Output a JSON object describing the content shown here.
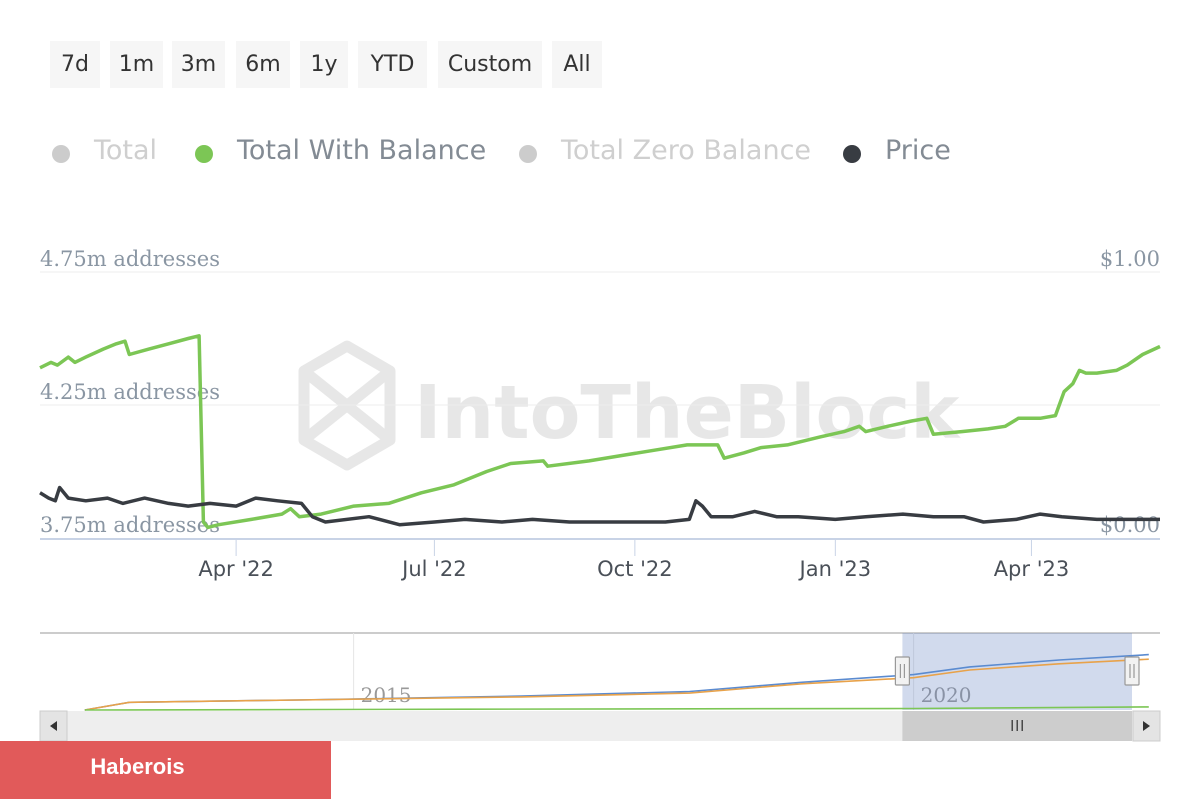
{
  "range_buttons": [
    {
      "id": "7d",
      "label": "7d"
    },
    {
      "id": "1m",
      "label": "1m"
    },
    {
      "id": "3m",
      "label": "3m"
    },
    {
      "id": "6m",
      "label": "6m"
    },
    {
      "id": "1y",
      "label": "1y"
    },
    {
      "id": "ytd",
      "label": "YTD"
    },
    {
      "id": "custom",
      "label": "Custom"
    },
    {
      "id": "all",
      "label": "All"
    }
  ],
  "legend": [
    {
      "id": "total",
      "label": "Total",
      "color": "#cccccc",
      "active": false
    },
    {
      "id": "total-with-balance",
      "label": "Total With Balance",
      "color": "#7cc655",
      "active": true
    },
    {
      "id": "total-zero-balance",
      "label": "Total Zero Balance",
      "color": "#cccccc",
      "active": false
    },
    {
      "id": "price",
      "label": "Price",
      "color": "#383c42",
      "active": true
    }
  ],
  "watermark": "IntoTheBlock",
  "banner": {
    "label": "Haberois"
  },
  "chart_data": {
    "type": "line",
    "title": "",
    "x_range": [
      "2022-01-01",
      "2023-05-30"
    ],
    "x_ticks": [
      {
        "label": "Apr '22",
        "date": "2022-04-01"
      },
      {
        "label": "Jul '22",
        "date": "2022-07-01"
      },
      {
        "label": "Oct '22",
        "date": "2022-10-01"
      },
      {
        "label": "Jan '23",
        "date": "2023-01-01"
      },
      {
        "label": "Apr '23",
        "date": "2023-04-01"
      }
    ],
    "y_left": {
      "range": [
        3.75,
        4.75
      ],
      "ticks": [
        {
          "value": 3.75,
          "label": "3.75m addresses"
        },
        {
          "value": 4.25,
          "label": "4.25m addresses"
        },
        {
          "value": 4.75,
          "label": "4.75m addresses"
        }
      ]
    },
    "y_right": {
      "range": [
        0,
        1
      ],
      "ticks": [
        {
          "value": 0,
          "label": "$0.00"
        },
        {
          "value": 1,
          "label": "$1.00"
        }
      ]
    },
    "series": [
      {
        "name": "Total With Balance",
        "axis": "left",
        "color": "#7cc655",
        "points": [
          [
            "2022-01-01",
            4.39
          ],
          [
            "2022-01-06",
            4.41
          ],
          [
            "2022-01-09",
            4.4
          ],
          [
            "2022-01-14",
            4.43
          ],
          [
            "2022-01-17",
            4.41
          ],
          [
            "2022-01-22",
            4.43
          ],
          [
            "2022-01-30",
            4.46
          ],
          [
            "2022-02-05",
            4.48
          ],
          [
            "2022-02-09",
            4.49
          ],
          [
            "2022-02-11",
            4.44
          ],
          [
            "2022-02-20",
            4.46
          ],
          [
            "2022-03-01",
            4.48
          ],
          [
            "2022-03-10",
            4.5
          ],
          [
            "2022-03-15",
            4.51
          ],
          [
            "2022-03-17",
            3.81
          ],
          [
            "2022-03-19",
            3.79
          ],
          [
            "2022-03-24",
            3.8
          ],
          [
            "2022-04-08",
            3.82
          ],
          [
            "2022-04-22",
            3.84
          ],
          [
            "2022-04-26",
            3.86
          ],
          [
            "2022-04-30",
            3.83
          ],
          [
            "2022-05-10",
            3.84
          ],
          [
            "2022-05-25",
            3.87
          ],
          [
            "2022-06-10",
            3.88
          ],
          [
            "2022-06-25",
            3.92
          ],
          [
            "2022-07-10",
            3.95
          ],
          [
            "2022-07-25",
            4.0
          ],
          [
            "2022-08-05",
            4.03
          ],
          [
            "2022-08-20",
            4.04
          ],
          [
            "2022-08-22",
            4.02
          ],
          [
            "2022-09-10",
            4.04
          ],
          [
            "2022-09-25",
            4.06
          ],
          [
            "2022-10-10",
            4.08
          ],
          [
            "2022-10-25",
            4.1
          ],
          [
            "2022-11-08",
            4.1
          ],
          [
            "2022-11-11",
            4.05
          ],
          [
            "2022-11-20",
            4.07
          ],
          [
            "2022-11-28",
            4.09
          ],
          [
            "2022-12-10",
            4.1
          ],
          [
            "2022-12-25",
            4.13
          ],
          [
            "2023-01-05",
            4.15
          ],
          [
            "2023-01-12",
            4.17
          ],
          [
            "2023-01-15",
            4.15
          ],
          [
            "2023-01-25",
            4.17
          ],
          [
            "2023-02-05",
            4.19
          ],
          [
            "2023-02-12",
            4.2
          ],
          [
            "2023-02-15",
            4.14
          ],
          [
            "2023-02-28",
            4.15
          ],
          [
            "2023-03-12",
            4.16
          ],
          [
            "2023-03-20",
            4.17
          ],
          [
            "2023-03-26",
            4.2
          ],
          [
            "2023-04-05",
            4.2
          ],
          [
            "2023-04-12",
            4.21
          ],
          [
            "2023-04-16",
            4.3
          ],
          [
            "2023-04-20",
            4.33
          ],
          [
            "2023-04-23",
            4.38
          ],
          [
            "2023-04-26",
            4.37
          ],
          [
            "2023-05-01",
            4.37
          ],
          [
            "2023-05-10",
            4.38
          ],
          [
            "2023-05-15",
            4.4
          ],
          [
            "2023-05-22",
            4.44
          ],
          [
            "2023-05-30",
            4.47
          ]
        ]
      },
      {
        "name": "Price",
        "axis": "right",
        "color": "#383c42",
        "points": [
          [
            "2022-01-01",
            0.17
          ],
          [
            "2022-01-05",
            0.15
          ],
          [
            "2022-01-08",
            0.14
          ],
          [
            "2022-01-10",
            0.19
          ],
          [
            "2022-01-14",
            0.15
          ],
          [
            "2022-01-22",
            0.14
          ],
          [
            "2022-02-01",
            0.15
          ],
          [
            "2022-02-08",
            0.13
          ],
          [
            "2022-02-18",
            0.15
          ],
          [
            "2022-03-01",
            0.13
          ],
          [
            "2022-03-10",
            0.12
          ],
          [
            "2022-03-20",
            0.13
          ],
          [
            "2022-04-01",
            0.12
          ],
          [
            "2022-04-10",
            0.15
          ],
          [
            "2022-04-20",
            0.14
          ],
          [
            "2022-05-01",
            0.13
          ],
          [
            "2022-05-06",
            0.08
          ],
          [
            "2022-05-12",
            0.06
          ],
          [
            "2022-06-01",
            0.08
          ],
          [
            "2022-06-15",
            0.05
          ],
          [
            "2022-07-01",
            0.06
          ],
          [
            "2022-07-15",
            0.07
          ],
          [
            "2022-08-01",
            0.06
          ],
          [
            "2022-08-15",
            0.07
          ],
          [
            "2022-09-01",
            0.06
          ],
          [
            "2022-09-15",
            0.06
          ],
          [
            "2022-10-01",
            0.06
          ],
          [
            "2022-10-15",
            0.06
          ],
          [
            "2022-10-26",
            0.07
          ],
          [
            "2022-10-29",
            0.14
          ],
          [
            "2022-11-01",
            0.12
          ],
          [
            "2022-11-05",
            0.08
          ],
          [
            "2022-11-15",
            0.08
          ],
          [
            "2022-11-25",
            0.1
          ],
          [
            "2022-12-05",
            0.08
          ],
          [
            "2022-12-15",
            0.08
          ],
          [
            "2023-01-01",
            0.07
          ],
          [
            "2023-01-15",
            0.08
          ],
          [
            "2023-02-01",
            0.09
          ],
          [
            "2023-02-15",
            0.08
          ],
          [
            "2023-03-01",
            0.08
          ],
          [
            "2023-03-10",
            0.06
          ],
          [
            "2023-03-25",
            0.07
          ],
          [
            "2023-04-05",
            0.09
          ],
          [
            "2023-04-15",
            0.08
          ],
          [
            "2023-05-01",
            0.07
          ],
          [
            "2023-05-15",
            0.07
          ],
          [
            "2023-05-30",
            0.07
          ]
        ]
      }
    ],
    "navigator": {
      "x_labels": [
        {
          "label": "2015",
          "year": 2015
        },
        {
          "label": "2020",
          "year": 2020
        }
      ],
      "x_range_years": [
        2012.2,
        2022.2
      ],
      "selected_range_years": [
        2019.9,
        2021.95
      ],
      "series": [
        {
          "color": "#5b8bd0",
          "points": [
            [
              2012.6,
              0.0
            ],
            [
              2013.0,
              0.1
            ],
            [
              2014.5,
              0.13
            ],
            [
              2016.5,
              0.18
            ],
            [
              2018.0,
              0.24
            ],
            [
              2019.0,
              0.36
            ],
            [
              2020.0,
              0.46
            ],
            [
              2020.5,
              0.56
            ],
            [
              2021.3,
              0.65
            ],
            [
              2022.1,
              0.72
            ]
          ]
        },
        {
          "color": "#e8a24a",
          "points": [
            [
              2012.6,
              0.0
            ],
            [
              2013.0,
              0.1
            ],
            [
              2014.5,
              0.13
            ],
            [
              2016.5,
              0.17
            ],
            [
              2018.0,
              0.22
            ],
            [
              2019.0,
              0.34
            ],
            [
              2020.0,
              0.42
            ],
            [
              2020.5,
              0.52
            ],
            [
              2021.3,
              0.6
            ],
            [
              2022.1,
              0.66
            ]
          ]
        },
        {
          "color": "#7cc655",
          "points": [
            [
              2012.6,
              0.0
            ],
            [
              2016.0,
              0.01
            ],
            [
              2020.0,
              0.02
            ],
            [
              2022.1,
              0.04
            ]
          ]
        }
      ]
    }
  }
}
